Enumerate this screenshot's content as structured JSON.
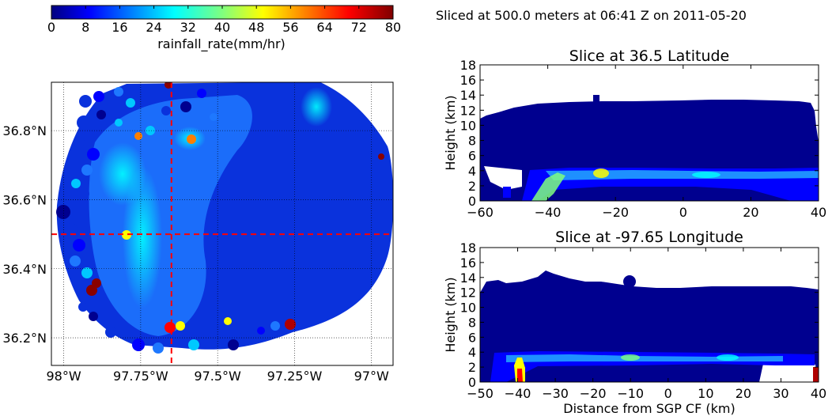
{
  "chart_data": [
    {
      "type": "colorbar",
      "label": "rainfall_rate(mm/hr)",
      "range": [
        0,
        80
      ],
      "ticks": [
        "0",
        "8",
        "16",
        "24",
        "32",
        "40",
        "48",
        "56",
        "64",
        "72",
        "80"
      ],
      "colormap": [
        "#00007f",
        "#0000ff",
        "#007fff",
        "#00ffff",
        "#7fff7f",
        "#ffff00",
        "#ff7f00",
        "#ff0000",
        "#7f0000"
      ]
    },
    {
      "type": "heatmap",
      "subtype": "map",
      "xticks": [
        "98°W",
        "97.75°W",
        "97.5°W",
        "97.25°W",
        "97°W"
      ],
      "yticks": [
        "36.2°N",
        "36.4°N",
        "36.6°N",
        "36.8°N"
      ],
      "xlim": [
        -98.04,
        -96.93
      ],
      "ylim": [
        36.12,
        36.94
      ],
      "crosshair": {
        "lon": -97.65,
        "lat": 36.5
      },
      "grid": true
    },
    {
      "type": "heatmap",
      "title": "Slice at 36.5 Latitude",
      "ylabel": "Height (km)",
      "xlim": [
        -60,
        40
      ],
      "ylim": [
        0,
        18
      ],
      "xticks": [
        "−60",
        "−40",
        "−20",
        "0",
        "20",
        "40"
      ],
      "yticks": [
        "0",
        "2",
        "4",
        "6",
        "8",
        "10",
        "12",
        "14",
        "16",
        "18"
      ]
    },
    {
      "type": "heatmap",
      "title": "Slice at -97.65 Longitude",
      "xlabel": "Distance from SGP CF (km)",
      "ylabel": "Height (km)",
      "xlim": [
        -50,
        40
      ],
      "ylim": [
        0,
        18
      ],
      "xticks": [
        "−50",
        "−40",
        "−30",
        "−20",
        "−10",
        "0",
        "10",
        "20",
        "30",
        "40"
      ],
      "yticks": [
        "0",
        "2",
        "4",
        "6",
        "8",
        "10",
        "12",
        "14",
        "16",
        "18"
      ]
    }
  ],
  "suptitle": "Sliced at 500.0 meters at 06:41 Z on 2011-05-20"
}
